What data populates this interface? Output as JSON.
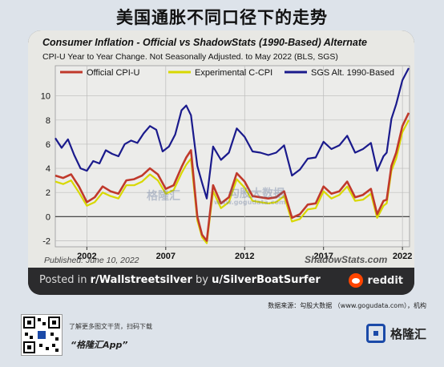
{
  "header": {
    "title": "美国通胀不同口径下的走势"
  },
  "chart_data": {
    "type": "line",
    "title": "Consumer Inflation - Official vs ShadowStats (1990-Based) Alternate",
    "subtitle": "CPI-U Year to Year Change. Not Seasonally Adjusted. to May 2022  (BLS, SGS)",
    "xlabel": "",
    "ylabel": "",
    "xlim": [
      2000,
      2022.45
    ],
    "ylim": [
      -2.5,
      12.5
    ],
    "x_ticks": [
      "2002",
      "2007",
      "2012",
      "2017",
      "2022"
    ],
    "y_ticks": [
      "-2",
      "0",
      "2",
      "4",
      "6",
      "8",
      "10"
    ],
    "grid": true,
    "legend_position": "top",
    "published": "Published: June 10, 2022",
    "brand": "ShadowStats.com",
    "series": [
      {
        "name": "Official CPI-U",
        "color": "#c0392b",
        "x": [
          2000,
          2000.5,
          2001,
          2001.5,
          2002,
          2002.5,
          2003,
          2003.5,
          2004,
          2004.5,
          2005,
          2005.5,
          2006,
          2006.5,
          2007,
          2007.5,
          2008,
          2008.3,
          2008.6,
          2009,
          2009.3,
          2009.6,
          2010,
          2010.5,
          2011,
          2011.5,
          2012,
          2012.5,
          2013,
          2013.5,
          2014,
          2014.5,
          2015,
          2015.5,
          2016,
          2016.5,
          2017,
          2017.5,
          2018,
          2018.5,
          2019,
          2019.5,
          2020,
          2020.4,
          2020.8,
          2021,
          2021.3,
          2021.6,
          2022,
          2022.4
        ],
        "values": [
          3.4,
          3.2,
          3.5,
          2.5,
          1.2,
          1.6,
          2.5,
          2.1,
          1.9,
          3.0,
          3.1,
          3.4,
          4.0,
          3.5,
          2.3,
          2.6,
          4.1,
          4.9,
          5.5,
          0.0,
          -1.5,
          -2.0,
          2.6,
          1.1,
          1.6,
          3.6,
          2.9,
          1.7,
          1.6,
          1.5,
          1.6,
          2.1,
          -0.1,
          0.2,
          1.0,
          1.1,
          2.5,
          1.9,
          2.1,
          2.9,
          1.6,
          1.8,
          2.3,
          0.2,
          1.3,
          1.4,
          4.2,
          5.3,
          7.5,
          8.6
        ]
      },
      {
        "name": "Experimental C-CPI",
        "color": "#d8d800",
        "x": [
          2000,
          2000.5,
          2001,
          2001.5,
          2002,
          2002.5,
          2003,
          2003.5,
          2004,
          2004.5,
          2005,
          2005.5,
          2006,
          2006.5,
          2007,
          2007.5,
          2008,
          2008.3,
          2008.6,
          2009,
          2009.3,
          2009.6,
          2010,
          2010.5,
          2011,
          2011.5,
          2012,
          2012.5,
          2013,
          2013.5,
          2014,
          2014.5,
          2015,
          2015.5,
          2016,
          2016.5,
          2017,
          2017.5,
          2018,
          2018.5,
          2019,
          2019.5,
          2020,
          2020.4,
          2020.8,
          2021,
          2021.3,
          2021.6,
          2022,
          2022.4
        ],
        "values": [
          2.9,
          2.7,
          3.0,
          2.0,
          0.9,
          1.2,
          2.0,
          1.7,
          1.5,
          2.6,
          2.6,
          2.9,
          3.5,
          3.0,
          1.9,
          2.2,
          3.6,
          4.3,
          4.8,
          -0.3,
          -1.7,
          -2.2,
          2.1,
          0.7,
          1.2,
          3.1,
          2.4,
          1.3,
          1.2,
          1.1,
          1.2,
          1.7,
          -0.4,
          -0.2,
          0.6,
          0.7,
          2.1,
          1.5,
          1.8,
          2.5,
          1.3,
          1.4,
          1.9,
          -0.1,
          0.9,
          1.1,
          3.8,
          4.8,
          7.0,
          8.0
        ]
      },
      {
        "name": "SGS  Alt. 1990-Based",
        "color": "#1a1a8c",
        "x": [
          2000,
          2000.4,
          2000.8,
          2001.2,
          2001.6,
          2002,
          2002.4,
          2002.8,
          2003.2,
          2003.6,
          2004,
          2004.4,
          2004.8,
          2005.2,
          2005.6,
          2006,
          2006.4,
          2006.8,
          2007.2,
          2007.6,
          2008,
          2008.3,
          2008.6,
          2009,
          2009.3,
          2009.6,
          2010,
          2010.5,
          2011,
          2011.5,
          2012,
          2012.5,
          2013,
          2013.5,
          2014,
          2014.5,
          2015,
          2015.5,
          2016,
          2016.5,
          2017,
          2017.5,
          2018,
          2018.5,
          2019,
          2019.5,
          2020,
          2020.4,
          2020.8,
          2021,
          2021.3,
          2021.6,
          2022,
          2022.4
        ],
        "values": [
          6.5,
          5.7,
          6.4,
          5.1,
          4.0,
          3.8,
          4.6,
          4.4,
          5.5,
          5.2,
          5.0,
          6.0,
          6.3,
          6.1,
          6.9,
          7.5,
          7.2,
          5.4,
          5.8,
          6.8,
          8.8,
          9.2,
          8.4,
          4.2,
          2.8,
          1.5,
          5.8,
          4.7,
          5.3,
          7.3,
          6.6,
          5.4,
          5.3,
          5.1,
          5.3,
          5.9,
          3.4,
          3.9,
          4.8,
          4.9,
          6.2,
          5.6,
          5.9,
          6.7,
          5.3,
          5.6,
          6.1,
          3.8,
          5.0,
          5.3,
          8.1,
          9.3,
          11.3,
          12.3
        ]
      }
    ]
  },
  "watermarks": [
    "格隆汇",
    "www.gogudata.com",
    "勾股大数据"
  ],
  "footer": {
    "posted_prefix": "Posted in ",
    "subreddit": "r/Wallstreetsilver",
    "by": " by ",
    "user": "u/SilverBoatSurfer",
    "reddit": "reddit"
  },
  "source_line": "数据来源：勾股大数据 （www.gogudata.com），机构",
  "promo": {
    "line1": "了解更多图文干货，扫码下载",
    "line2": "“格隆汇App”"
  },
  "brand_name": "格隆汇"
}
